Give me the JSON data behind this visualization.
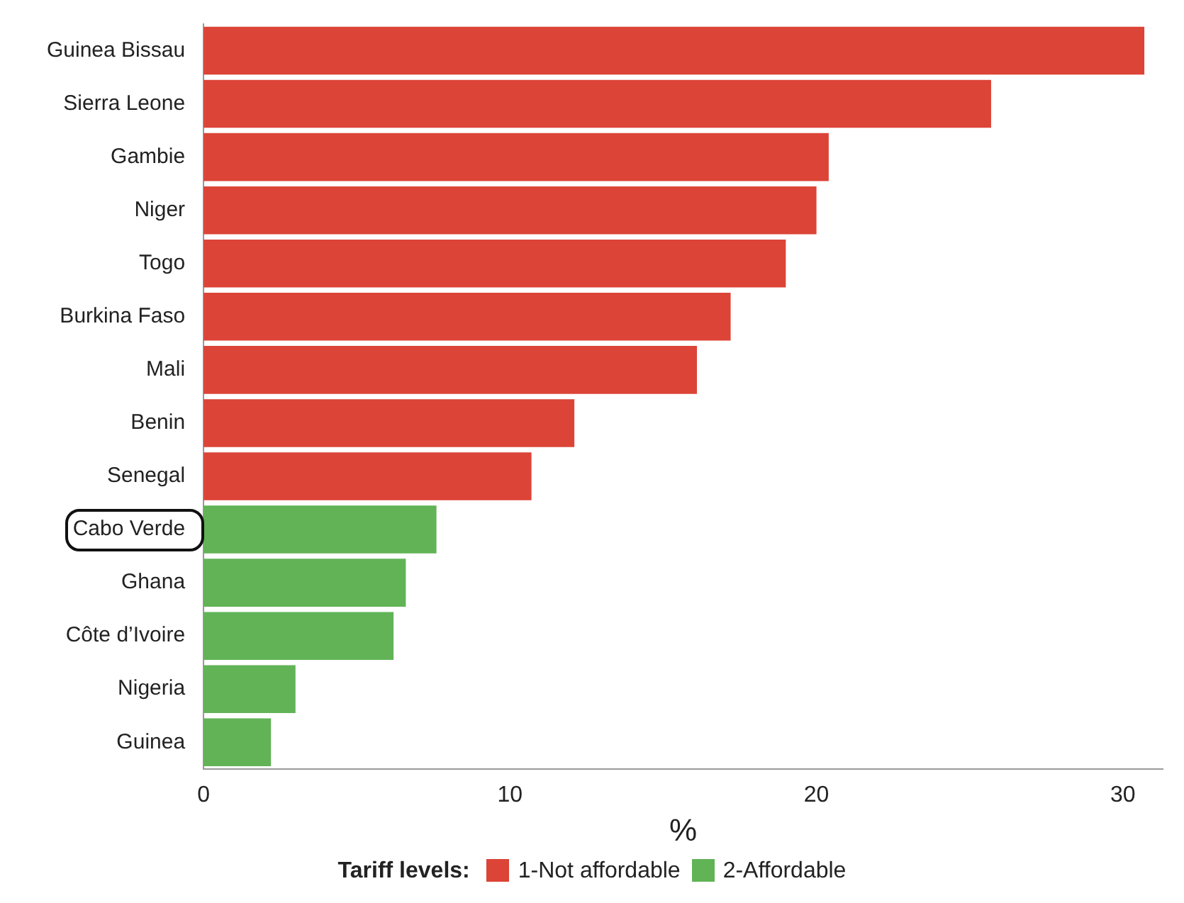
{
  "chart_data": {
    "type": "bar",
    "orientation": "horizontal",
    "xlabel": "%",
    "legend_title": "Tariff levels:",
    "legend": "bottom",
    "grid": false,
    "categories": [
      "Guinea Bissau",
      "Sierra Leone",
      "Gambie",
      "Niger",
      "Togo",
      "Burkina Faso",
      "Mali",
      "Benin",
      "Senegal",
      "Cabo Verde",
      "Ghana",
      "Côte d’Ivoire",
      "Nigeria",
      "Guinea"
    ],
    "series": [
      {
        "name": "1-Not affordable",
        "color": "#db4437",
        "values": [
          30.7,
          25.7,
          20.4,
          20.0,
          19.0,
          17.2,
          16.1,
          12.1,
          10.7,
          null,
          null,
          null,
          null,
          null
        ]
      },
      {
        "name": "2-Affordable",
        "color": "#61b356",
        "values": [
          null,
          null,
          null,
          null,
          null,
          null,
          null,
          null,
          null,
          7.6,
          6.6,
          6.2,
          3.0,
          2.2
        ]
      }
    ],
    "xlim": [
      0,
      31.3
    ],
    "xticks": [
      0,
      10,
      20,
      30
    ]
  }
}
